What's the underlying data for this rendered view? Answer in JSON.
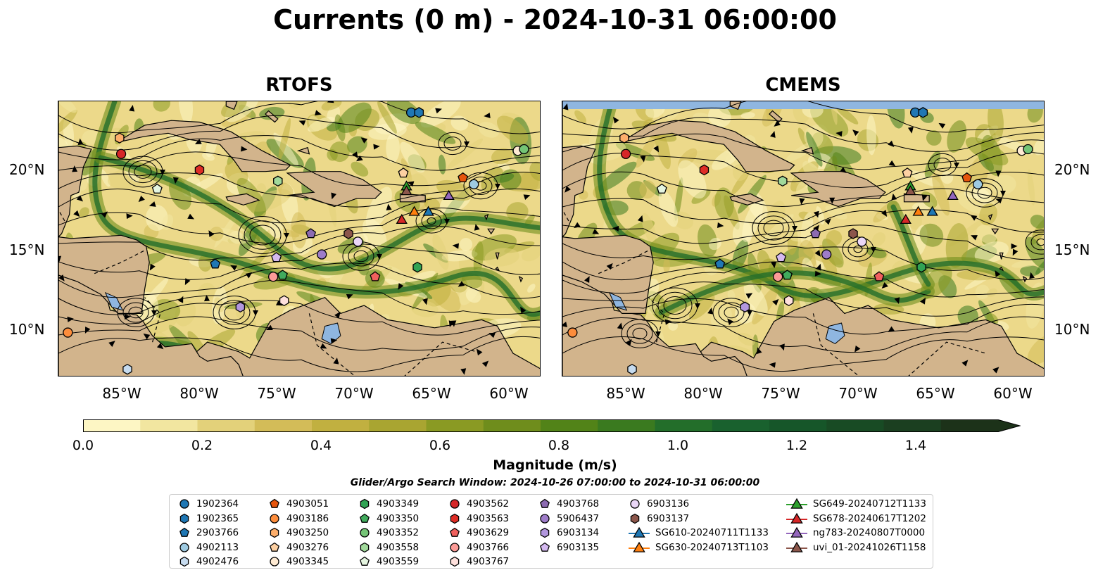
{
  "title": "Currents (0 m) - 2024-10-31 06:00:00",
  "panels": [
    {
      "title": "RTOFS"
    },
    {
      "title": "CMEMS"
    }
  ],
  "axes": {
    "lat_ticks": [
      "20°N",
      "15°N",
      "10°N"
    ],
    "lon_ticks": [
      "85°W",
      "80°W",
      "75°W",
      "70°W",
      "65°W",
      "60°W"
    ]
  },
  "colorbar": {
    "label": "Magnitude (m/s)",
    "ticks": [
      "0.0",
      "0.2",
      "0.4",
      "0.6",
      "0.8",
      "1.0",
      "1.2",
      "1.4"
    ],
    "range": [
      0.0,
      1.5
    ],
    "extend": "max",
    "colors": [
      "#fdf6c4",
      "#f2e6a0",
      "#e3d17a",
      "#d3bc58",
      "#c1b040",
      "#a9a531",
      "#8a9a23",
      "#6f8d1c",
      "#528318",
      "#3a7a1f",
      "#236e2a",
      "#19612e",
      "#165629",
      "#184b24",
      "#1b3f20",
      "#1c3219"
    ]
  },
  "search_window": "Glider/Argo Search Window: 2024-10-26 07:00:00 to 2024-10-31 06:00:00",
  "colors": {
    "land": "#d2b48c",
    "water_inland": "#8fb6e0",
    "streamline": "#000000"
  },
  "legend": [
    {
      "label": "1902364",
      "marker": "circle",
      "color": "#1f77b4"
    },
    {
      "label": "1902365",
      "marker": "hexagon",
      "color": "#1f77b4"
    },
    {
      "label": "2903766",
      "marker": "pentagon",
      "color": "#1f77b4"
    },
    {
      "label": "4902113",
      "marker": "circle",
      "color": "#9ecae1"
    },
    {
      "label": "4902476",
      "marker": "hexagon",
      "color": "#c6dbef"
    },
    {
      "label": "4903051",
      "marker": "pentagon",
      "color": "#e6550d"
    },
    {
      "label": "4903186",
      "marker": "circle",
      "color": "#fd8d3c"
    },
    {
      "label": "4903250",
      "marker": "hexagon",
      "color": "#fdae6b"
    },
    {
      "label": "4903276",
      "marker": "pentagon",
      "color": "#fdd0a2"
    },
    {
      "label": "4903345",
      "marker": "circle",
      "color": "#feead2"
    },
    {
      "label": "4903349",
      "marker": "hexagon",
      "color": "#31a354"
    },
    {
      "label": "4903350",
      "marker": "pentagon",
      "color": "#41ab5d"
    },
    {
      "label": "4903352",
      "marker": "circle",
      "color": "#74c476"
    },
    {
      "label": "4903558",
      "marker": "hexagon",
      "color": "#a1d99b"
    },
    {
      "label": "4903559",
      "marker": "pentagon",
      "color": "#e5f5e0"
    },
    {
      "label": "4903562",
      "marker": "circle",
      "color": "#d62728"
    },
    {
      "label": "4903563",
      "marker": "hexagon",
      "color": "#de2d26"
    },
    {
      "label": "4903629",
      "marker": "pentagon",
      "color": "#f0605d"
    },
    {
      "label": "4903766",
      "marker": "circle",
      "color": "#fc9b97"
    },
    {
      "label": "4903767",
      "marker": "hexagon",
      "color": "#fee0dc"
    },
    {
      "label": "4903768",
      "marker": "pentagon",
      "color": "#8c6bb1"
    },
    {
      "label": "5906437",
      "marker": "circle",
      "color": "#9e7cc9"
    },
    {
      "label": "6903134",
      "marker": "hexagon",
      "color": "#b297de"
    },
    {
      "label": "6903135",
      "marker": "pentagon",
      "color": "#d4b9f0"
    },
    {
      "label": "6903136",
      "marker": "circle",
      "color": "#ead7f7"
    },
    {
      "label": "6903137",
      "marker": "hexagon",
      "color": "#8c564b"
    },
    {
      "label": "SG610-20240711T1133",
      "marker": "triangle",
      "color": "#1f77b4"
    },
    {
      "label": "SG630-20240713T1103",
      "marker": "triangle",
      "color": "#ff7f0e"
    },
    {
      "label": "SG649-20240712T1133",
      "marker": "triangle",
      "color": "#2ca02c"
    },
    {
      "label": "SG678-20240617T1202",
      "marker": "triangle",
      "color": "#d62728"
    },
    {
      "label": "ng783-20240807T0000",
      "marker": "triangle",
      "color": "#9467bd"
    },
    {
      "label": "uvi_01-20241026T1158",
      "marker": "triangle",
      "color": "#8c564b"
    }
  ],
  "floats_on_map": [
    {
      "id": "1902364",
      "lon": -66.5,
      "lat": 23.6
    },
    {
      "id": "1902365",
      "lon": -66.0,
      "lat": 23.6
    },
    {
      "id": "2903766",
      "lon": -79.0,
      "lat": 14.1
    },
    {
      "id": "4902113",
      "lon": -62.5,
      "lat": 19.1
    },
    {
      "id": "4902476",
      "lon": -84.6,
      "lat": 7.5
    },
    {
      "id": "4903051",
      "lon": -63.2,
      "lat": 19.5
    },
    {
      "id": "4903186",
      "lon": -88.4,
      "lat": 9.8
    },
    {
      "id": "4903250",
      "lon": -85.1,
      "lat": 22.0
    },
    {
      "id": "4903276",
      "lon": -67.0,
      "lat": 19.8
    },
    {
      "id": "4903345",
      "lon": -59.7,
      "lat": 21.2
    },
    {
      "id": "4903349",
      "lon": -66.1,
      "lat": 13.9
    },
    {
      "id": "4903350",
      "lon": -74.7,
      "lat": 13.4
    },
    {
      "id": "4903352",
      "lon": -59.3,
      "lat": 21.3
    },
    {
      "id": "4903558",
      "lon": -75.0,
      "lat": 19.3
    },
    {
      "id": "4903559",
      "lon": -82.7,
      "lat": 18.8
    },
    {
      "id": "4903562",
      "lon": -85.0,
      "lat": 21.0
    },
    {
      "id": "4903563",
      "lon": -80.0,
      "lat": 20.0
    },
    {
      "id": "4903629",
      "lon": -68.8,
      "lat": 13.3
    },
    {
      "id": "4903766",
      "lon": -75.3,
      "lat": 13.3
    },
    {
      "id": "4903767",
      "lon": -74.6,
      "lat": 11.8
    },
    {
      "id": "4903768",
      "lon": -72.9,
      "lat": 16.0
    },
    {
      "id": "5906437",
      "lon": -72.2,
      "lat": 14.7
    },
    {
      "id": "6903134",
      "lon": -77.4,
      "lat": 11.4
    },
    {
      "id": "6903135",
      "lon": -75.1,
      "lat": 14.5
    },
    {
      "id": "6903136",
      "lon": -69.9,
      "lat": 15.5
    },
    {
      "id": "6903137",
      "lon": -70.5,
      "lat": 16.0
    },
    {
      "id": "SG610-20240711T1133",
      "lon": -65.4,
      "lat": 17.4
    },
    {
      "id": "SG630-20240713T1103",
      "lon": -66.3,
      "lat": 17.4
    },
    {
      "id": "SG649-20240712T1133",
      "lon": -66.8,
      "lat": 19.0
    },
    {
      "id": "SG678-20240617T1202",
      "lon": -67.1,
      "lat": 16.9
    },
    {
      "id": "ng783-20240807T0000",
      "lon": -64.1,
      "lat": 18.4
    },
    {
      "id": "uvi_01-20241026T1158",
      "lon": -66.8,
      "lat": 18.7
    }
  ]
}
